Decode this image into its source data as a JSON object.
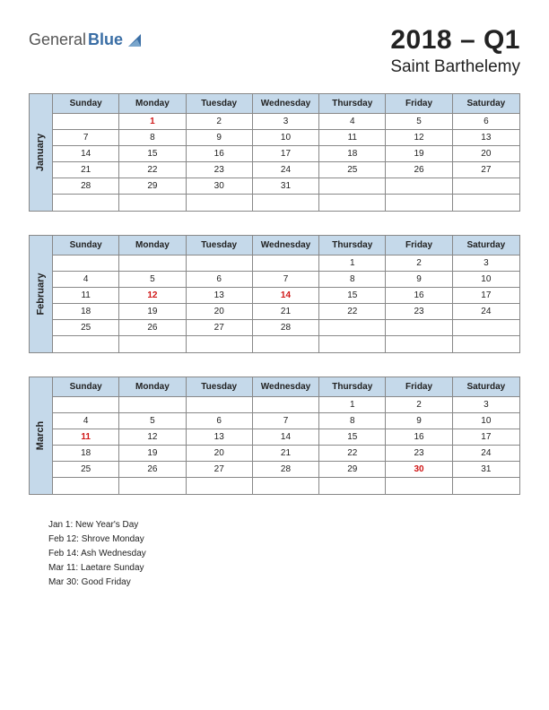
{
  "logo": {
    "part1": "General",
    "part2": "Blue"
  },
  "title": {
    "main": "2018 – Q1",
    "sub": "Saint Barthelemy"
  },
  "colors": {
    "header_bg": "#c5d9ea",
    "border": "#888888",
    "holiday": "#d01818",
    "logo_blue": "#3a6ea5"
  },
  "day_headers": [
    "Sunday",
    "Monday",
    "Tuesday",
    "Wednesday",
    "Thursday",
    "Friday",
    "Saturday"
  ],
  "months": [
    {
      "name": "January",
      "rows": [
        [
          "",
          "1",
          "2",
          "3",
          "4",
          "5",
          "6"
        ],
        [
          "7",
          "8",
          "9",
          "10",
          "11",
          "12",
          "13"
        ],
        [
          "14",
          "15",
          "16",
          "17",
          "18",
          "19",
          "20"
        ],
        [
          "21",
          "22",
          "23",
          "24",
          "25",
          "26",
          "27"
        ],
        [
          "28",
          "29",
          "30",
          "31",
          "",
          "",
          ""
        ],
        [
          "",
          "",
          "",
          "",
          "",
          "",
          ""
        ]
      ],
      "holidays": [
        [
          0,
          1
        ]
      ]
    },
    {
      "name": "February",
      "rows": [
        [
          "",
          "",
          "",
          "",
          "1",
          "2",
          "3"
        ],
        [
          "4",
          "5",
          "6",
          "7",
          "8",
          "9",
          "10"
        ],
        [
          "11",
          "12",
          "13",
          "14",
          "15",
          "16",
          "17"
        ],
        [
          "18",
          "19",
          "20",
          "21",
          "22",
          "23",
          "24"
        ],
        [
          "25",
          "26",
          "27",
          "28",
          "",
          "",
          ""
        ],
        [
          "",
          "",
          "",
          "",
          "",
          "",
          ""
        ]
      ],
      "holidays": [
        [
          2,
          1
        ],
        [
          2,
          3
        ]
      ]
    },
    {
      "name": "March",
      "rows": [
        [
          "",
          "",
          "",
          "",
          "1",
          "2",
          "3"
        ],
        [
          "4",
          "5",
          "6",
          "7",
          "8",
          "9",
          "10"
        ],
        [
          "11",
          "12",
          "13",
          "14",
          "15",
          "16",
          "17"
        ],
        [
          "18",
          "19",
          "20",
          "21",
          "22",
          "23",
          "24"
        ],
        [
          "25",
          "26",
          "27",
          "28",
          "29",
          "30",
          "31"
        ],
        [
          "",
          "",
          "",
          "",
          "",
          "",
          ""
        ]
      ],
      "holidays": [
        [
          2,
          0
        ],
        [
          4,
          5
        ]
      ]
    }
  ],
  "holiday_list": [
    "Jan 1: New Year's Day",
    "Feb 12: Shrove Monday",
    "Feb 14: Ash Wednesday",
    "Mar 11: Laetare Sunday",
    "Mar 30: Good Friday"
  ]
}
